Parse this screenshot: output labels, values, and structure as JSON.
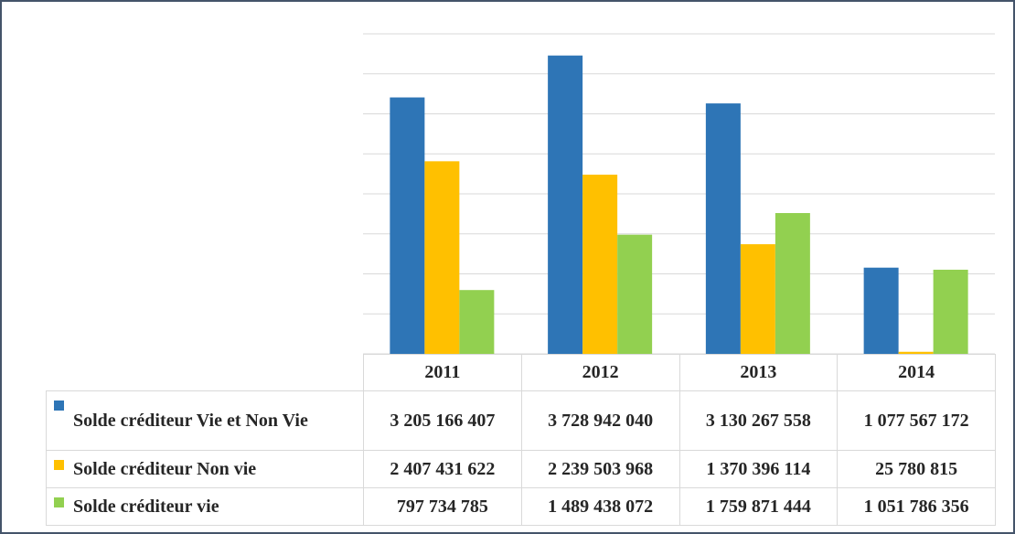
{
  "chart_data": {
    "type": "bar",
    "categories": [
      "2011",
      "2012",
      "2013",
      "2014"
    ],
    "series": [
      {
        "name": "Solde créditeur Vie et Non Vie",
        "color": "#2e75b6",
        "values": [
          3205166407,
          3728942040,
          3130267558,
          1077567172
        ],
        "value_labels": [
          "3 205 166 407",
          "3 728 942 040",
          "3 130 267 558",
          "1 077 567 172"
        ]
      },
      {
        "name": "Solde créditeur Non vie",
        "color": "#ffc000",
        "values": [
          2407431622,
          2239503968,
          1370396114,
          25780815
        ],
        "value_labels": [
          "2 407 431 622",
          "2 239 503 968",
          "1 370 396 114",
          "25 780 815"
        ]
      },
      {
        "name": "Solde créditeur vie",
        "color": "#92d050",
        "values": [
          797734785,
          1489438072,
          1759871444,
          1051786356
        ],
        "value_labels": [
          "797 734 785",
          "1 489 438 072",
          "1 759 871 444",
          "1 051 786 356"
        ]
      }
    ],
    "ylim": [
      0,
      4000000000
    ],
    "yticks": [
      0,
      500000000,
      1000000000,
      1500000000,
      2000000000,
      2500000000,
      3000000000,
      3500000000,
      4000000000
    ],
    "grid": true,
    "tick_labels": false,
    "data_table": true
  }
}
